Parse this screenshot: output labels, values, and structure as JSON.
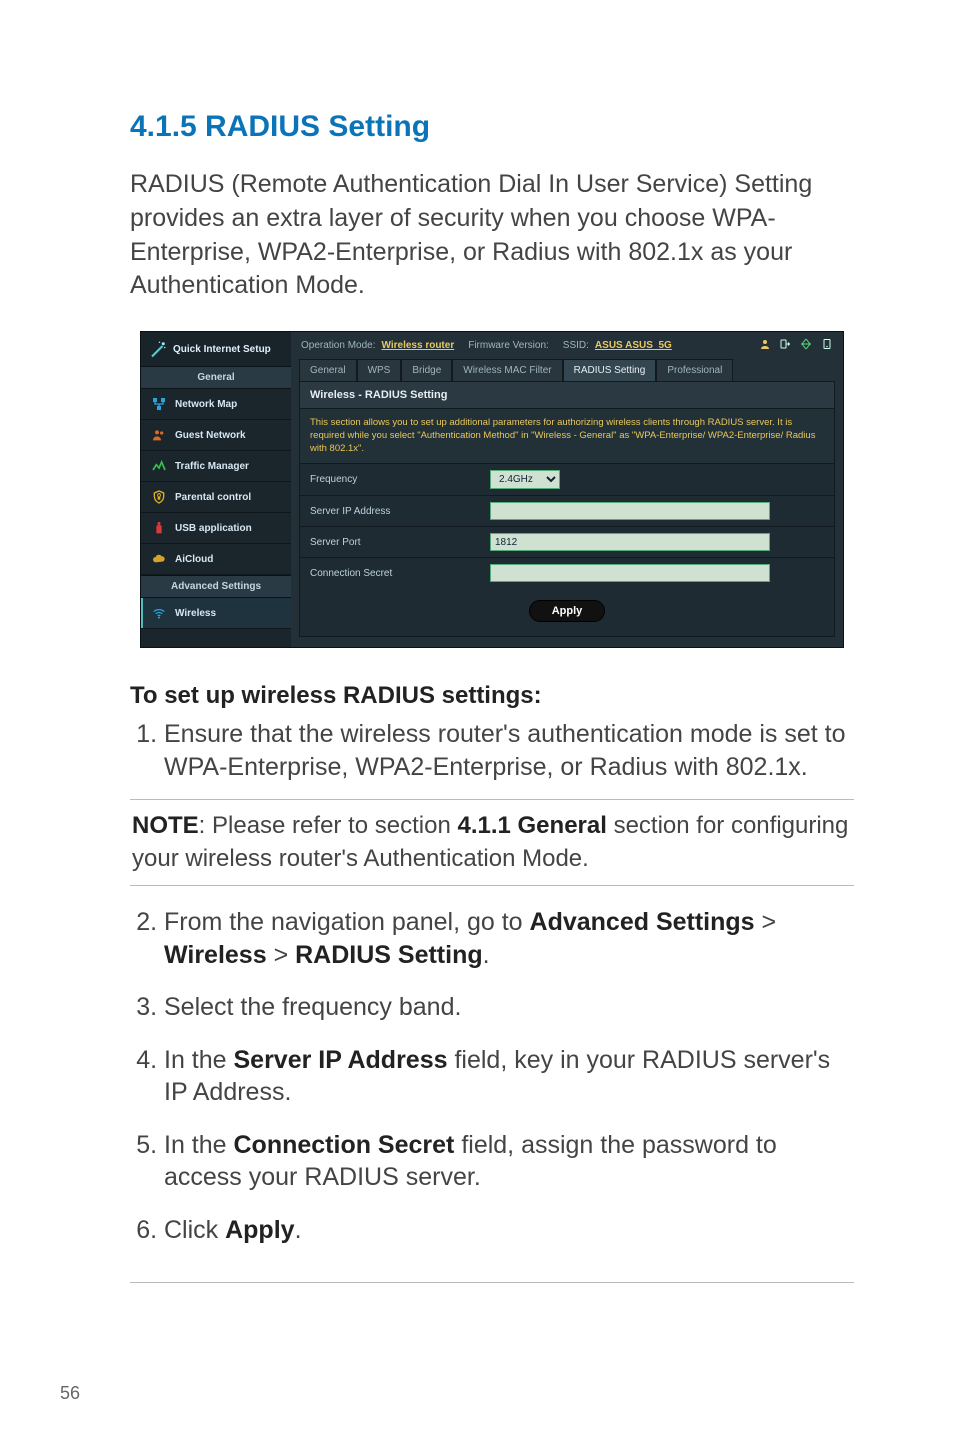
{
  "page_number": "56",
  "heading": "4.1.5 RADIUS Setting",
  "intro": "RADIUS (Remote Authentication Dial In User Service) Setting provides an extra layer of security when you choose WPA-Enterprise, WPA2-Enterprise, or Radius with 802.1x as your Authentication Mode.",
  "screenshot": {
    "colors": {
      "frame_bg": "#1e2a32",
      "sidebar_bg": "#1a252c",
      "main_bg": "#233038",
      "panel_bg": "#1f2b33",
      "panel_title_bg": "#2a3942",
      "desc_text": "#eac85a",
      "link": "#e9c864",
      "field_bg": "#cfe2d2"
    },
    "sidebar": {
      "quick_setup": "Quick Internet Setup",
      "general_header": "General",
      "items": [
        {
          "label": "Network Map",
          "icon": "network-map-icon",
          "icon_color": "#2aa3e0"
        },
        {
          "label": "Guest Network",
          "icon": "guest-network-icon",
          "icon_color": "#d96b20"
        },
        {
          "label": "Traffic Manager",
          "icon": "traffic-manager-icon",
          "icon_color": "#35c14a"
        },
        {
          "label": "Parental control",
          "icon": "parental-control-icon",
          "icon_color": "#e0b020"
        },
        {
          "label": "USB application",
          "icon": "usb-application-icon",
          "icon_color": "#d63a3a"
        },
        {
          "label": "AiCloud",
          "icon": "aicloud-icon",
          "icon_color": "#d4a32a"
        }
      ],
      "advanced_header": "Advanced Settings",
      "advanced_items": [
        {
          "label": "Wireless",
          "icon": "wireless-icon",
          "icon_color": "#2aa3e0"
        }
      ]
    },
    "topbar": {
      "op_mode_label": "Operation Mode:",
      "op_mode_value": "Wireless router",
      "fw_label": "Firmware Version:",
      "ssid_label": "SSID:",
      "ssid_value": "ASUS  ASUS_5G",
      "icons": [
        "user-icon",
        "logout-icon",
        "language-icon",
        "reboot-icon"
      ]
    },
    "tabs": [
      "General",
      "WPS",
      "Bridge",
      "Wireless MAC Filter",
      "RADIUS Setting",
      "Professional"
    ],
    "active_tab_index": 4,
    "panel": {
      "title": "Wireless - RADIUS Setting",
      "description": "This section allows you to set up additional parameters for authorizing wireless clients through RADIUS server. It is required while you select \"Authentication Method\" in \"Wireless - General\" as \"WPA-Enterprise/ WPA2-Enterprise/ Radius with 802.1x\".",
      "rows": [
        {
          "label": "Frequency",
          "type": "select",
          "value": "2.4GHz"
        },
        {
          "label": "Server IP Address",
          "type": "text",
          "value": ""
        },
        {
          "label": "Server Port",
          "type": "text",
          "value": "1812"
        },
        {
          "label": "Connection Secret",
          "type": "text",
          "value": ""
        }
      ],
      "apply_label": "Apply"
    }
  },
  "subheading": "To set up wireless RADIUS settings:",
  "step1": "Ensure that the wireless router's authentication mode is set to WPA-Enterprise, WPA2-Enterprise, or Radius with 802.1x.",
  "note_prefix": "NOTE",
  "note_body_a": ":  Please refer to section ",
  "note_bold": "4.1.1 General",
  "note_body_b": " section for configuring your wireless router's Authentication Mode.",
  "steps2": {
    "s2_a": "From the navigation panel, go to ",
    "s2_b1": "Advanced Settings",
    "s2_gt1": " > ",
    "s2_b2": "Wireless",
    "s2_gt2": " > ",
    "s2_b3": "RADIUS Setting",
    "s2_end": ".",
    "s3": "Select the frequency band.",
    "s4_a": "In the ",
    "s4_b": "Server IP Address",
    "s4_c": " field, key in your RADIUS server's IP Address.",
    "s5_a": "In the ",
    "s5_b": "Connection Secret",
    "s5_c": " field, assign the password to access your RADIUS server.",
    "s6_a": "Click ",
    "s6_b": "Apply",
    "s6_c": "."
  }
}
